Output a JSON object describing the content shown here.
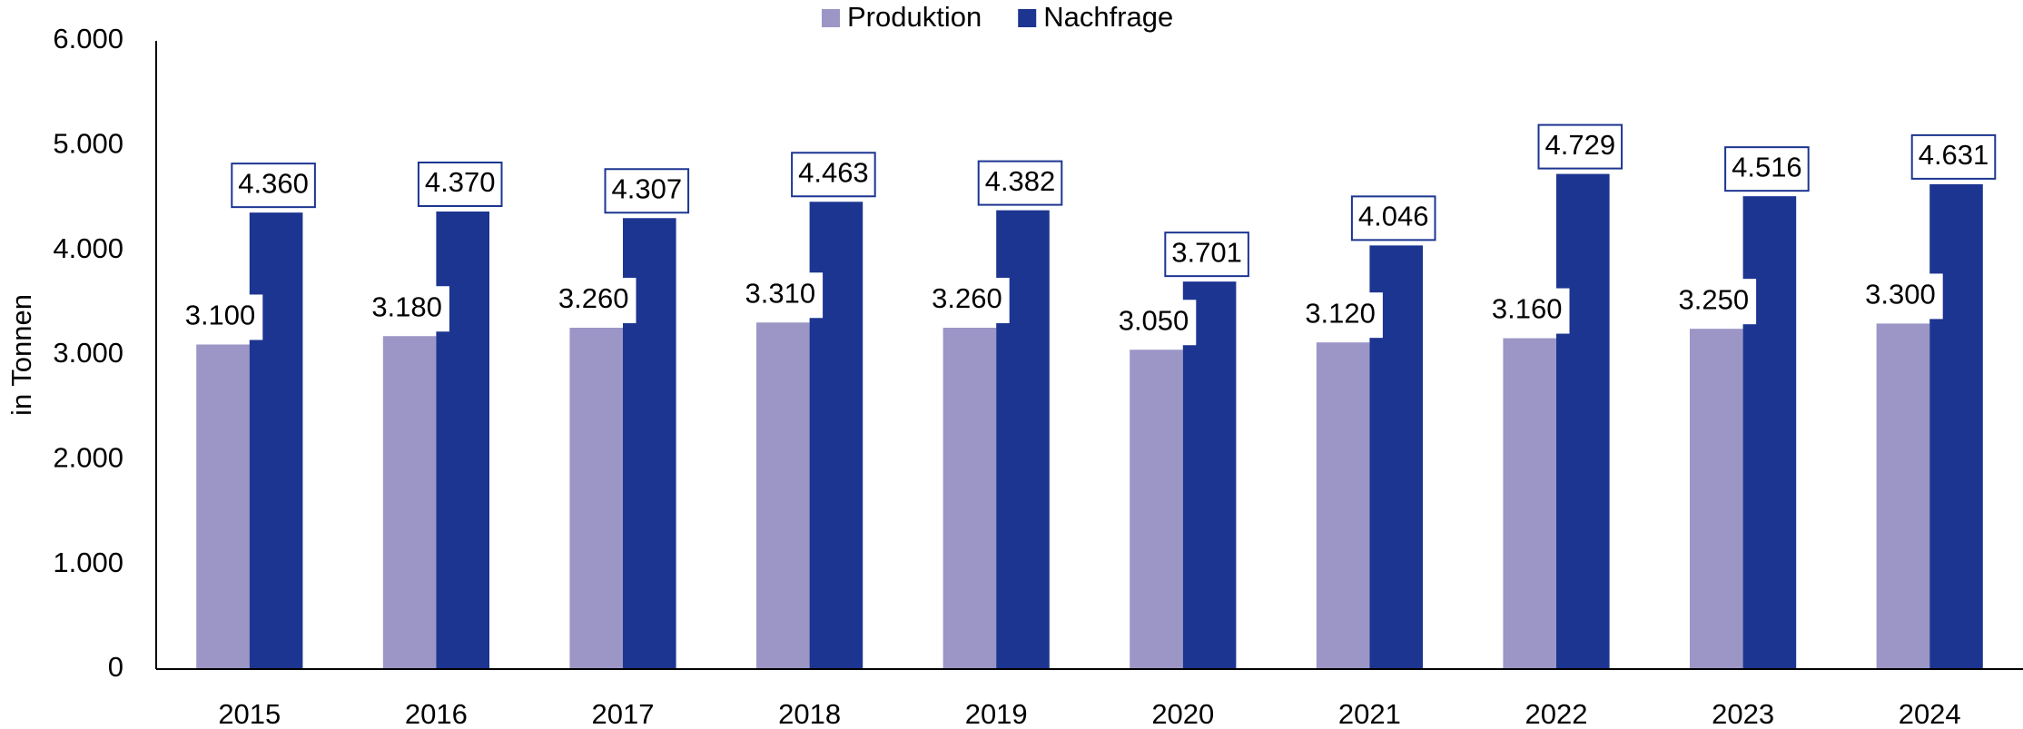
{
  "chart_data": {
    "type": "bar",
    "categories": [
      "2015",
      "2016",
      "2017",
      "2018",
      "2019",
      "2020",
      "2021",
      "2022",
      "2023",
      "2024"
    ],
    "series": [
      {
        "name": "Produktion",
        "color": "#9b96c6",
        "values": [
          3100,
          3180,
          3260,
          3310,
          3260,
          3050,
          3120,
          3160,
          3250,
          3300
        ],
        "value_labels": [
          "3.100",
          "3.180",
          "3.260",
          "3.310",
          "3.260",
          "3.050",
          "3.120",
          "3.160",
          "3.250",
          "3.300"
        ]
      },
      {
        "name": "Nachfrage",
        "color": "#1c3591",
        "values": [
          4360,
          4370,
          4307,
          4463,
          4382,
          3701,
          4046,
          4729,
          4516,
          4631
        ],
        "value_labels": [
          "4.360",
          "4.370",
          "4.307",
          "4.463",
          "4.382",
          "3.701",
          "4.046",
          "4.729",
          "4.516",
          "4.631"
        ]
      }
    ],
    "y_label": "in Tonnen",
    "ylim": [
      0,
      6000
    ],
    "yticks": [
      {
        "value": 0,
        "label": "0"
      },
      {
        "value": 1000,
        "label": "1.000"
      },
      {
        "value": 2000,
        "label": "2.000"
      },
      {
        "value": 3000,
        "label": "3.000"
      },
      {
        "value": 4000,
        "label": "4.000"
      },
      {
        "value": 5000,
        "label": "5.000"
      },
      {
        "value": 6000,
        "label": "6.000"
      }
    ],
    "legend": "top",
    "grid": false
  }
}
